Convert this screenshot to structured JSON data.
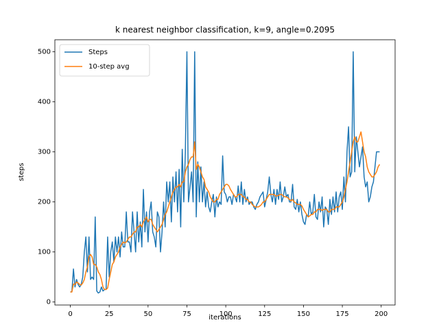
{
  "chart_data": {
    "type": "line",
    "title": "k nearest neighbor classification, k=9, angle=0.2095",
    "x_label": "iterations",
    "y_label": "steps",
    "x": [
      0,
      1,
      2,
      3,
      4,
      5,
      6,
      7,
      8,
      9,
      10,
      11,
      12,
      13,
      14,
      15,
      16,
      17,
      18,
      19,
      20,
      21,
      22,
      23,
      24,
      25,
      26,
      27,
      28,
      29,
      30,
      31,
      32,
      33,
      34,
      35,
      36,
      37,
      38,
      39,
      40,
      41,
      42,
      43,
      44,
      45,
      46,
      47,
      48,
      49,
      50,
      51,
      52,
      53,
      54,
      55,
      56,
      57,
      58,
      59,
      60,
      61,
      62,
      63,
      64,
      65,
      66,
      67,
      68,
      69,
      70,
      71,
      72,
      73,
      74,
      75,
      76,
      77,
      78,
      79,
      80,
      81,
      82,
      83,
      84,
      85,
      86,
      87,
      88,
      89,
      90,
      91,
      92,
      93,
      94,
      95,
      96,
      97,
      98,
      99,
      100,
      101,
      102,
      103,
      104,
      105,
      106,
      107,
      108,
      109,
      110,
      111,
      112,
      113,
      114,
      115,
      116,
      117,
      118,
      119,
      120,
      121,
      122,
      123,
      124,
      125,
      126,
      127,
      128,
      129,
      130,
      131,
      132,
      133,
      134,
      135,
      136,
      137,
      138,
      139,
      140,
      141,
      142,
      143,
      144,
      145,
      146,
      147,
      148,
      149,
      150,
      151,
      152,
      153,
      154,
      155,
      156,
      157,
      158,
      159,
      160,
      161,
      162,
      163,
      164,
      165,
      166,
      167,
      168,
      169,
      170,
      171,
      172,
      173,
      174,
      175,
      176,
      177,
      178,
      179,
      180,
      181,
      182,
      183,
      184,
      185,
      186,
      187,
      188,
      189,
      190,
      191,
      192,
      193,
      194,
      195,
      196,
      197,
      198,
      199
    ],
    "series": [
      {
        "name": "Steps",
        "color": "#1f77b4",
        "values": [
          20,
          21,
          66,
          30,
          45,
          35,
          30,
          35,
          50,
          100,
          130,
          60,
          130,
          45,
          50,
          45,
          170,
          22,
          18,
          20,
          30,
          22,
          25,
          25,
          130,
          50,
          100,
          120,
          80,
          130,
          100,
          130,
          90,
          140,
          110,
          110,
          180,
          120,
          120,
          100,
          180,
          140,
          100,
          180,
          120,
          160,
          110,
          225,
          140,
          180,
          120,
          180,
          200,
          140,
          130,
          110,
          180,
          170,
          100,
          140,
          200,
          150,
          240,
          200,
          240,
          160,
          250,
          200,
          260,
          180,
          265,
          150,
          305,
          200,
          300,
          500,
          200,
          230,
          260,
          200,
          500,
          170,
          280,
          200,
          270,
          200,
          240,
          190,
          220,
          190,
          180,
          200,
          215,
          170,
          210,
          190,
          200,
          195,
          292,
          220,
          215,
          200,
          210,
          210,
          195,
          215,
          210,
          200,
          232,
          200,
          240,
          195,
          225,
          200,
          210,
          195,
          200,
          200,
          190,
          185,
          195,
          200,
          210,
          215,
          220,
          190,
          205,
          220,
          250,
          215,
          200,
          225,
          195,
          225,
          205,
          240,
          200,
          210,
          230,
          210,
          215,
          200,
          200,
          235,
          190,
          185,
          205,
          180,
          200,
          175,
          160,
          155,
          175,
          170,
          200,
          175,
          180,
          215,
          170,
          165,
          200,
          180,
          210,
          150,
          190,
          185,
          155,
          205,
          175,
          210,
          180,
          220,
          180,
          210,
          220,
          185,
          250,
          200,
          300,
          350,
          250,
          260,
          500,
          260,
          330,
          300,
          270,
          290,
          310,
          250,
          230,
          240,
          200,
          210,
          230,
          240,
          270,
          300,
          300,
          300
        ]
      },
      {
        "name": "10-step avg",
        "color": "#ff7f0e",
        "values": [
          20,
          20,
          36,
          35,
          40,
          38,
          35,
          34,
          38,
          45,
          60,
          70,
          90,
          95,
          90,
          75,
          75,
          70,
          60,
          55,
          45,
          30,
          25,
          25,
          28,
          45,
          60,
          75,
          80,
          90,
          95,
          100,
          110,
          115,
          120,
          118,
          120,
          125,
          130,
          130,
          135,
          140,
          140,
          150,
          150,
          155,
          150,
          160,
          165,
          170,
          160,
          165,
          165,
          155,
          150,
          145,
          140,
          145,
          150,
          155,
          165,
          175,
          180,
          190,
          200,
          210,
          220,
          225,
          230,
          230,
          235,
          230,
          240,
          240,
          260,
          270,
          275,
          285,
          290,
          290,
          320,
          265,
          275,
          270,
          260,
          250,
          245,
          230,
          225,
          220,
          210,
          205,
          200,
          200,
          205,
          205,
          215,
          220,
          225,
          230,
          235,
          235,
          232,
          225,
          220,
          215,
          210,
          210,
          215,
          215,
          215,
          210,
          210,
          205,
          205,
          200,
          200,
          195,
          192,
          190,
          190,
          190,
          192,
          195,
          200,
          200,
          205,
          210,
          215,
          215,
          215,
          215,
          212,
          212,
          213,
          215,
          215,
          212,
          210,
          210,
          208,
          205,
          202,
          205,
          200,
          198,
          195,
          195,
          195,
          192,
          185,
          180,
          175,
          170,
          172,
          175,
          175,
          180,
          180,
          185,
          185,
          185,
          183,
          185,
          185,
          185,
          180,
          180,
          185,
          185,
          185,
          190,
          190,
          190,
          195,
          200,
          210,
          225,
          240,
          260,
          280,
          300,
          320,
          330,
          320,
          320,
          330,
          340,
          320,
          300,
          290,
          270,
          260,
          255,
          250,
          250,
          255,
          260,
          270,
          275
        ]
      }
    ],
    "xlim": [
      -9.95,
      208.95
    ],
    "ylim": [
      -6,
      524
    ],
    "xticks": [
      0,
      25,
      50,
      75,
      100,
      125,
      150,
      175,
      200
    ],
    "yticks": [
      0,
      100,
      200,
      300,
      400,
      500
    ],
    "legend": "upper left"
  }
}
